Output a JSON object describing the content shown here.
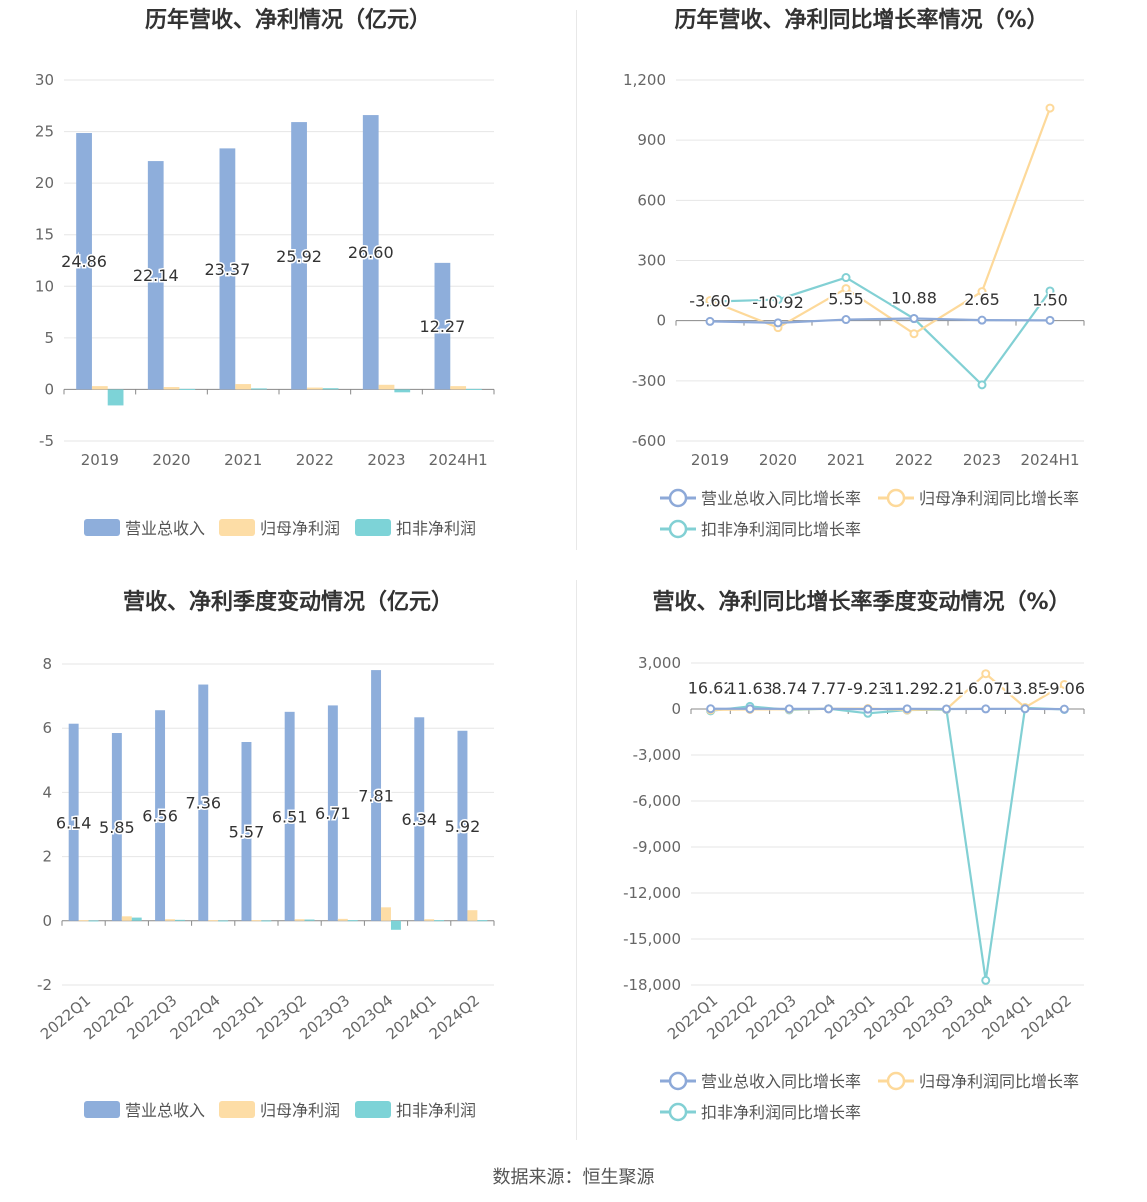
{
  "source_label": "数据来源：恒生聚源",
  "colors": {
    "revenue": "#8EAEDB",
    "parent": "#FDDDA6",
    "deducted": "#7DD3D7",
    "revenue_line": "#8DA9D8",
    "parent_line": "#FDD99A",
    "deducted_line": "#82D0D4",
    "grid": "#E6E6E6",
    "axis": "#888888"
  },
  "chart_data": [
    {
      "id": "annual_amount",
      "type": "bar",
      "title": "历年营收、净利情况（亿元）",
      "categories": [
        "2019",
        "2020",
        "2021",
        "2022",
        "2023",
        "2024H1"
      ],
      "ylim": [
        -5,
        30
      ],
      "yticks": [
        -5,
        0,
        5,
        10,
        15,
        20,
        25,
        30
      ],
      "series": [
        {
          "name": "营业总收入",
          "color": "#8EAEDB",
          "values": [
            24.86,
            22.14,
            23.37,
            25.92,
            26.6,
            12.27
          ],
          "labels": [
            "24.86",
            "22.14",
            "23.37",
            "25.92",
            "26.60",
            "12.27"
          ]
        },
        {
          "name": "归母净利润",
          "color": "#FDDDA6",
          "values": [
            0.32,
            0.23,
            0.52,
            0.18,
            0.45,
            0.32
          ]
        },
        {
          "name": "扣非净利润",
          "color": "#7DD3D7",
          "values": [
            -1.55,
            0.05,
            0.1,
            0.12,
            -0.28,
            0.05
          ]
        }
      ],
      "legend": "bottom"
    },
    {
      "id": "annual_growth",
      "type": "line",
      "title": "历年营收、净利同比增长率情况（%）",
      "categories": [
        "2019",
        "2020",
        "2021",
        "2022",
        "2023",
        "2024H1"
      ],
      "ylim": [
        -600,
        1200
      ],
      "yticks": [
        -600,
        -300,
        0,
        300,
        600,
        900,
        1200
      ],
      "ytick_labels": [
        "-600",
        "-300",
        "0",
        "300",
        "600",
        "900",
        "1,200"
      ],
      "series": [
        {
          "name": "营业总收入同比增长率",
          "color": "#8DA9D8",
          "values": [
            -3.6,
            -10.92,
            5.55,
            10.88,
            2.65,
            1.5
          ],
          "labels": [
            "-3.60",
            "-10.92",
            "5.55",
            "10.88",
            "2.65",
            "1.50"
          ]
        },
        {
          "name": "归母净利润同比增长率",
          "color": "#FDD99A",
          "values": [
            100,
            -35,
            160,
            -65,
            145,
            1060
          ]
        },
        {
          "name": "扣非净利润同比增长率",
          "color": "#82D0D4",
          "values": [
            95,
            105,
            215,
            10,
            -320,
            148
          ]
        }
      ],
      "legend": "bottom"
    },
    {
      "id": "quarterly_amount",
      "type": "bar",
      "title": "营收、净利季度变动情况（亿元）",
      "categories": [
        "2022Q1",
        "2022Q2",
        "2022Q3",
        "2022Q4",
        "2023Q1",
        "2023Q2",
        "2023Q3",
        "2023Q4",
        "2024Q1",
        "2024Q2"
      ],
      "ylim": [
        -2,
        8
      ],
      "yticks": [
        -2,
        0,
        2,
        4,
        6,
        8
      ],
      "series": [
        {
          "name": "营业总收入",
          "color": "#8EAEDB",
          "values": [
            6.14,
            5.85,
            6.56,
            7.36,
            5.57,
            6.51,
            6.71,
            7.81,
            6.34,
            5.92
          ],
          "labels": [
            "6.14",
            "5.85",
            "6.56",
            "7.36",
            "5.57",
            "6.51",
            "6.71",
            "7.81",
            "6.34",
            "5.92"
          ]
        },
        {
          "name": "归母净利润",
          "color": "#FDDDA6",
          "values": [
            0.02,
            0.14,
            0.05,
            0.02,
            0.02,
            0.05,
            0.06,
            0.42,
            0.05,
            0.33
          ]
        },
        {
          "name": "扣非净利润",
          "color": "#7DD3D7",
          "values": [
            0.01,
            0.1,
            0.03,
            0.01,
            0.01,
            0.04,
            0.02,
            -0.28,
            0.02,
            0.02
          ]
        }
      ],
      "legend": "bottom"
    },
    {
      "id": "quarterly_growth",
      "type": "line",
      "title": "营收、净利同比增长率季度变动情况（%）",
      "categories": [
        "2022Q1",
        "2022Q2",
        "2022Q3",
        "2022Q4",
        "2023Q1",
        "2023Q2",
        "2023Q3",
        "2023Q4",
        "2024Q1",
        "2024Q2"
      ],
      "ylim": [
        -18000,
        3000
      ],
      "yticks": [
        -18000,
        -15000,
        -12000,
        -9000,
        -6000,
        -3000,
        0,
        3000
      ],
      "ytick_labels": [
        "-18,000",
        "-15,000",
        "-12,000",
        "-9,000",
        "-6,000",
        "-3,000",
        "0",
        "3,000"
      ],
      "series": [
        {
          "name": "营业总收入同比增长率",
          "color": "#8DA9D8",
          "values": [
            16.62,
            11.63,
            8.74,
            7.77,
            -9.23,
            11.29,
            2.21,
            6.07,
            13.85,
            -9.06
          ],
          "labels": [
            "16.62",
            "11.63",
            "8.74",
            "7.77",
            "-9.23",
            "11.29",
            "2.21",
            "6.07",
            "13.85",
            "-9.06"
          ]
        },
        {
          "name": "归母净利润同比增长率",
          "color": "#FDD99A",
          "values": [
            -60,
            -30,
            -20,
            10,
            30,
            -60,
            -10,
            2300,
            100,
            1600
          ]
        },
        {
          "name": "扣非净利润同比增长率",
          "color": "#82D0D4",
          "values": [
            -120,
            170,
            -60,
            20,
            -280,
            -70,
            -40,
            -17700,
            70,
            -30
          ]
        }
      ],
      "legend": "bottom"
    }
  ]
}
